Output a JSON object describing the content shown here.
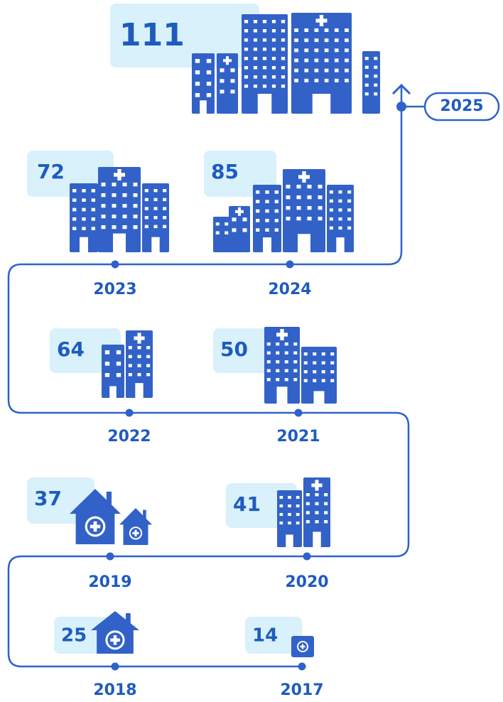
{
  "items": [
    {
      "year": "2025",
      "count": "111"
    },
    {
      "year": "2024",
      "count": "85"
    },
    {
      "year": "2023",
      "count": "72"
    },
    {
      "year": "2022",
      "count": "64"
    },
    {
      "year": "2021",
      "count": "50"
    },
    {
      "year": "2020",
      "count": "41"
    },
    {
      "year": "2019",
      "count": "37"
    },
    {
      "year": "2018",
      "count": "25"
    },
    {
      "year": "2017",
      "count": "14"
    }
  ]
}
